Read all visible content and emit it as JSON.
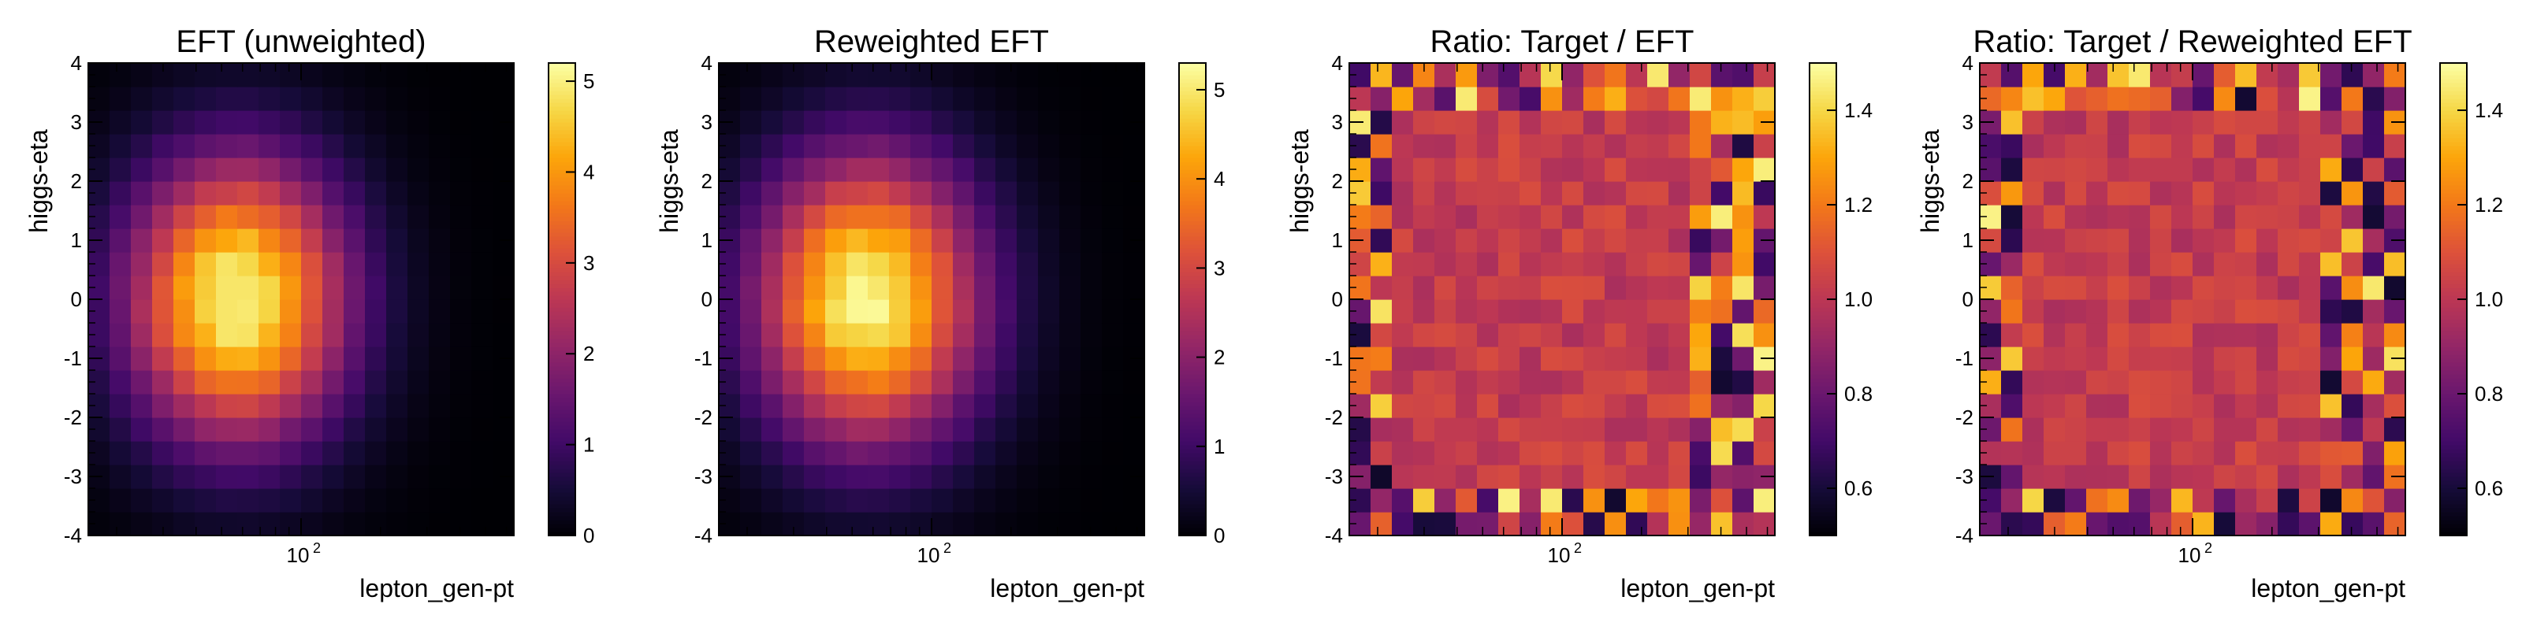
{
  "chart_data": [
    {
      "type": "heatmap",
      "title": "EFT (unweighted)",
      "xlabel": "lepton_gen-pt",
      "ylabel": "higgs-eta",
      "x_scale": "log",
      "x_tick_label": "10",
      "x_tick_exp": "2",
      "ylim": [
        -4,
        4
      ],
      "y_ticks": [
        "-4",
        "-3",
        "-2",
        "-1",
        "0",
        "1",
        "2",
        "3",
        "4"
      ],
      "colorscale": "inferno",
      "z_range": [
        0,
        5.2
      ],
      "colorbar_ticks": [
        "0",
        "1",
        "2",
        "3",
        "4",
        "5"
      ],
      "colorbar_values": [
        0,
        1,
        2,
        3,
        4,
        5
      ],
      "grid": {
        "nx": 20,
        "ny": 20,
        "x_center": 6.5,
        "y_center": 9.5,
        "sx": 3.6,
        "sy": 4.2,
        "peak": 5.1,
        "seed": 11,
        "noise": 0.03
      }
    },
    {
      "type": "heatmap",
      "title": "Reweighted EFT",
      "xlabel": "lepton_gen-pt",
      "ylabel": "higgs-eta",
      "x_scale": "log",
      "x_tick_label": "10",
      "x_tick_exp": "2",
      "ylim": [
        -4,
        4
      ],
      "y_ticks": [
        "-4",
        "-3",
        "-2",
        "-1",
        "0",
        "1",
        "2",
        "3",
        "4"
      ],
      "colorscale": "inferno",
      "z_range": [
        0,
        5.3
      ],
      "colorbar_ticks": [
        "0",
        "1",
        "2",
        "3",
        "4",
        "5"
      ],
      "colorbar_values": [
        0,
        1,
        2,
        3,
        4,
        5
      ],
      "grid": {
        "nx": 20,
        "ny": 20,
        "x_center": 6.5,
        "y_center": 9.5,
        "sx": 3.7,
        "sy": 4.3,
        "peak": 5.2,
        "seed": 23,
        "noise": 0.03
      }
    },
    {
      "type": "heatmap",
      "title": "Ratio: Target / EFT",
      "xlabel": "lepton_gen-pt",
      "ylabel": "higgs-eta",
      "x_scale": "log",
      "x_tick_label": "10",
      "x_tick_exp": "2",
      "ylim": [
        -4,
        4
      ],
      "y_ticks": [
        "-4",
        "-3",
        "-2",
        "-1",
        "0",
        "1",
        "2",
        "3",
        "4"
      ],
      "colorscale": "inferno",
      "z_range": [
        0.5,
        1.5
      ],
      "colorbar_ticks": [
        "0.6",
        "0.8",
        "1.0",
        "1.2",
        "1.4"
      ],
      "colorbar_values": [
        0.6,
        0.8,
        1.0,
        1.2,
        1.4
      ],
      "grid": {
        "nx": 20,
        "ny": 20,
        "mean": 1.02,
        "seed": 37,
        "noise": 0.07,
        "edge_noise": 0.45
      }
    },
    {
      "type": "heatmap",
      "title": "Ratio: Target / Reweighted EFT",
      "xlabel": "lepton_gen-pt",
      "ylabel": "higgs-eta",
      "x_scale": "log",
      "x_tick_label": "10",
      "x_tick_exp": "2",
      "ylim": [
        -4,
        4
      ],
      "y_ticks": [
        "-4",
        "-3",
        "-2",
        "-1",
        "0",
        "1",
        "2",
        "3",
        "4"
      ],
      "colorscale": "inferno",
      "z_range": [
        0.5,
        1.5
      ],
      "colorbar_ticks": [
        "0.6",
        "0.8",
        "1.0",
        "1.2",
        "1.4"
      ],
      "colorbar_values": [
        0.6,
        0.8,
        1.0,
        1.2,
        1.4
      ],
      "grid": {
        "nx": 20,
        "ny": 20,
        "mean": 1.02,
        "seed": 53,
        "noise": 0.07,
        "edge_noise": 0.45
      }
    }
  ]
}
